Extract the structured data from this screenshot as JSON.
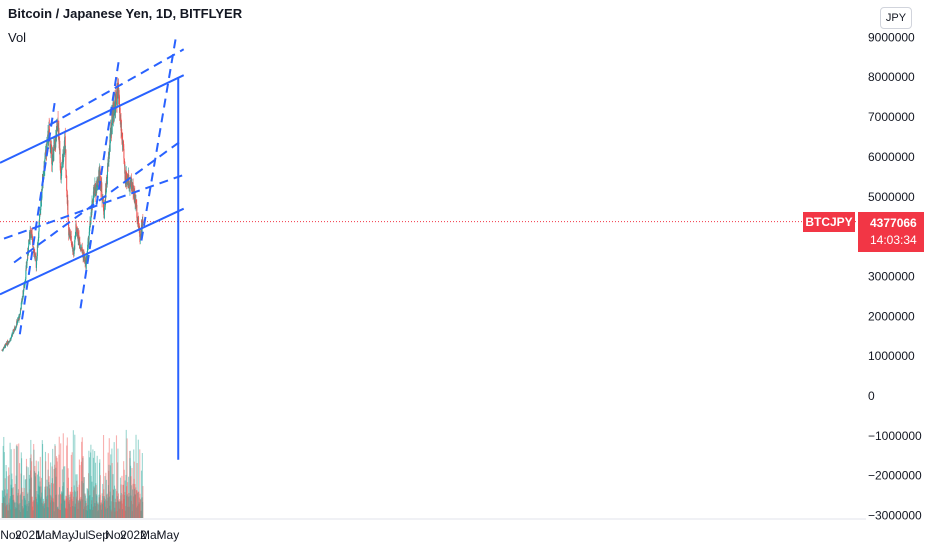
{
  "header": {
    "title": "Bitcoin / Japanese Yen, 1D, BITFLYER",
    "indicator": "Vol",
    "currency_button": "JPY"
  },
  "price_tag": {
    "symbol": "BTCJPY",
    "price": "4377066",
    "countdown": "14:03:34"
  },
  "colors": {
    "up": "#26a69a",
    "down": "#ef5350",
    "trendline": "#2962ff",
    "price_tag": "#f23645",
    "axis_text": "#131722"
  },
  "chart_data": {
    "type": "candlestick",
    "title": "Bitcoin / Japanese Yen, 1D, BITFLYER",
    "x_tick_labels": [
      "Nov",
      "2021",
      "Mar",
      "May",
      "Jul",
      "Sep",
      "Nov",
      "2022",
      "Mar",
      "May"
    ],
    "y_tick_labels": [
      "9000000",
      "8000000",
      "7000000",
      "6000000",
      "5000000",
      "4000000",
      "3000000",
      "2000000",
      "1000000",
      "0",
      "−1000000",
      "−2000000",
      "−3000000"
    ],
    "ylim": [
      -3000000,
      9300000
    ],
    "last_price": 4377066,
    "price_path": [
      {
        "date": "2020-10-01",
        "close": 1150000
      },
      {
        "date": "2020-11-01",
        "close": 1450000
      },
      {
        "date": "2020-12-01",
        "close": 2000000
      },
      {
        "date": "2020-12-20",
        "close": 2900000
      },
      {
        "date": "2021-01-08",
        "close": 4200000
      },
      {
        "date": "2021-01-28",
        "close": 3300000
      },
      {
        "date": "2021-02-20",
        "close": 5500000
      },
      {
        "date": "2021-03-13",
        "close": 6600000
      },
      {
        "date": "2021-03-25",
        "close": 5900000
      },
      {
        "date": "2021-04-14",
        "close": 6800000
      },
      {
        "date": "2021-04-25",
        "close": 5500000
      },
      {
        "date": "2021-05-08",
        "close": 6400000
      },
      {
        "date": "2021-05-20",
        "close": 4200000
      },
      {
        "date": "2021-06-08",
        "close": 3600000
      },
      {
        "date": "2021-06-15",
        "close": 4200000
      },
      {
        "date": "2021-07-20",
        "close": 3300000
      },
      {
        "date": "2021-08-14",
        "close": 5000000
      },
      {
        "date": "2021-09-06",
        "close": 5600000
      },
      {
        "date": "2021-09-21",
        "close": 4600000
      },
      {
        "date": "2021-10-20",
        "close": 7100000
      },
      {
        "date": "2021-11-09",
        "close": 7600000
      },
      {
        "date": "2021-12-04",
        "close": 5500000
      },
      {
        "date": "2021-12-28",
        "close": 5300000
      },
      {
        "date": "2022-01-10",
        "close": 4800000
      },
      {
        "date": "2022-01-24",
        "close": 4000000
      },
      {
        "date": "2022-02-03",
        "close": 4377066
      }
    ],
    "trendlines": [
      {
        "style": "solid",
        "from": [
          "2020-09-24",
          5850000
        ],
        "to": [
          "2022-06-25",
          8050000
        ]
      },
      {
        "style": "solid",
        "from": [
          "2020-09-24",
          2550000
        ],
        "to": [
          "2022-06-25",
          4700000
        ]
      },
      {
        "style": "dashed",
        "from": [
          "2020-10-08",
          3950000
        ],
        "to": [
          "2022-06-25",
          5550000
        ]
      },
      {
        "style": "dashed",
        "from": [
          "2020-11-12",
          3350000
        ],
        "to": [
          "2022-06-25",
          6450000
        ]
      },
      {
        "style": "dashed",
        "from": [
          "2021-03-15",
          6800000
        ],
        "to": [
          "2022-06-25",
          8700000
        ]
      },
      {
        "style": "dashed",
        "from": [
          "2020-12-02",
          1550000
        ],
        "to": [
          "2021-04-02",
          7350000
        ]
      },
      {
        "style": "dashed",
        "from": [
          "2021-07-01",
          2200000
        ],
        "to": [
          "2021-11-13",
          8500000
        ]
      },
      {
        "style": "dashed",
        "from": [
          "2022-01-29",
          3900000
        ],
        "to": [
          "2022-05-30",
          9050000
        ]
      },
      {
        "style": "solid",
        "from": [
          "2022-06-06",
          8000000
        ],
        "to": [
          "2022-06-06",
          -1600000
        ]
      }
    ]
  }
}
